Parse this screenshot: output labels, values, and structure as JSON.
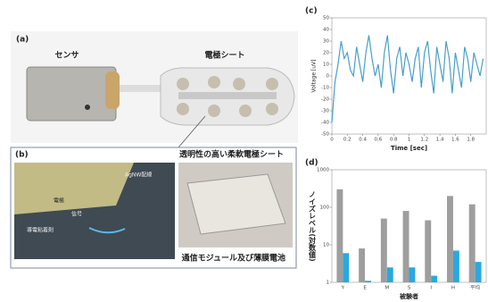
{
  "figure": {
    "panel_a": {
      "label": "(a)",
      "sensor": "センサ",
      "sheet": "電極シート"
    },
    "panel_b": {
      "label": "(b)",
      "title": "透明性の高い柔軟電極シート",
      "wiring": "AgNW配線",
      "signal": "信号",
      "adhesive": "導電粘着剤",
      "electrode": "電極",
      "module": "通信モジュール及び薄膜電池"
    }
  },
  "chart_data": [
    {
      "panel": "(c)",
      "type": "line",
      "x_label": "Time [sec]",
      "y_label": "Voltage [uV]",
      "color": "#4a9fc9",
      "x": [
        0,
        0.04,
        0.08,
        0.12,
        0.16,
        0.2,
        0.24,
        0.28,
        0.32,
        0.36,
        0.4,
        0.44,
        0.48,
        0.52,
        0.56,
        0.6,
        0.64,
        0.68,
        0.72,
        0.76,
        0.8,
        0.84,
        0.88,
        0.92,
        0.96,
        1.0,
        1.04,
        1.08,
        1.12,
        1.16,
        1.2,
        1.24,
        1.28,
        1.32,
        1.36,
        1.4,
        1.44,
        1.48,
        1.52,
        1.56,
        1.6,
        1.64,
        1.68,
        1.72,
        1.76,
        1.8,
        1.84,
        1.88,
        1.92,
        1.96
      ],
      "values": [
        -40,
        -5,
        10,
        30,
        15,
        20,
        5,
        0,
        25,
        10,
        -5,
        20,
        35,
        15,
        0,
        10,
        -10,
        20,
        35,
        5,
        -15,
        15,
        25,
        0,
        20,
        10,
        -5,
        15,
        25,
        -10,
        20,
        30,
        5,
        -15,
        25,
        10,
        -5,
        30,
        15,
        -15,
        20,
        5,
        -10,
        25,
        15,
        -5,
        20,
        10,
        0,
        15
      ],
      "xlim": [
        0,
        2
      ],
      "xticks": [
        0,
        0.2,
        0.4,
        0.6,
        0.8,
        1,
        1.2,
        1.4,
        1.6,
        1.8
      ],
      "ylim": [
        -50,
        50
      ],
      "yticks": [
        -50,
        -40,
        -30,
        -20,
        -10,
        0,
        10,
        20,
        30,
        40,
        50
      ]
    },
    {
      "panel": "(d)",
      "type": "bar",
      "log_scale": true,
      "x_label": "被験者",
      "y_label": "ノイズレベル(対数値)",
      "categories": [
        "Y",
        "E",
        "M",
        "S",
        "I",
        "H",
        "平均"
      ],
      "series": [
        {
          "color": "#9e9e9e",
          "values": [
            300,
            8,
            50,
            80,
            45,
            200,
            120
          ]
        },
        {
          "color": "#29a8e0",
          "values": [
            6,
            1.1,
            2.5,
            2.5,
            1.5,
            7,
            3.5
          ]
        }
      ],
      "ylim": [
        1,
        1000
      ],
      "yticks": [
        1,
        10,
        100,
        1000
      ]
    }
  ]
}
